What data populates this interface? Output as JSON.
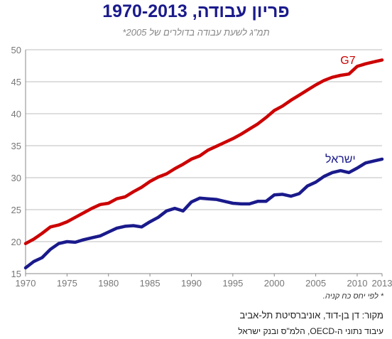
{
  "chart_data": {
    "type": "line",
    "title": "פריון עבודה, 1970-2013",
    "subtitle": "תמ\"ג לשעת עבודה בדולרים של 2005*",
    "x": [
      1970,
      1971,
      1972,
      1973,
      1974,
      1975,
      1976,
      1977,
      1978,
      1979,
      1980,
      1981,
      1982,
      1983,
      1984,
      1985,
      1986,
      1987,
      1988,
      1989,
      1990,
      1991,
      1992,
      1993,
      1994,
      1995,
      1996,
      1997,
      1998,
      1999,
      2000,
      2001,
      2002,
      2003,
      2004,
      2005,
      2006,
      2007,
      2008,
      2009,
      2010,
      2011,
      2012,
      2013
    ],
    "series": [
      {
        "name": "G7",
        "color": "#cc0000",
        "values": [
          19.7,
          20.4,
          21.3,
          22.3,
          22.6,
          23.1,
          23.8,
          24.5,
          25.2,
          25.8,
          26.0,
          26.7,
          27.0,
          27.8,
          28.5,
          29.4,
          30.1,
          30.6,
          31.4,
          32.1,
          32.9,
          33.4,
          34.3,
          34.9,
          35.5,
          36.1,
          36.8,
          37.6,
          38.4,
          39.4,
          40.5,
          41.2,
          42.1,
          42.9,
          43.7,
          44.5,
          45.2,
          45.7,
          46.0,
          46.2,
          47.4,
          47.8,
          48.1,
          48.4
        ]
      },
      {
        "name": "ישראל",
        "color": "#1a1a8c",
        "values": [
          15.9,
          16.9,
          17.5,
          18.8,
          19.7,
          20.0,
          19.9,
          20.3,
          20.6,
          20.9,
          21.5,
          22.1,
          22.4,
          22.5,
          22.3,
          23.1,
          23.8,
          24.8,
          25.2,
          24.8,
          26.2,
          26.8,
          26.7,
          26.6,
          26.3,
          26.0,
          25.9,
          25.9,
          26.3,
          26.3,
          27.3,
          27.4,
          27.1,
          27.5,
          28.7,
          29.3,
          30.2,
          30.8,
          31.1,
          30.8,
          31.5,
          32.3,
          32.6,
          32.9
        ]
      }
    ],
    "xlim": [
      1970,
      2013
    ],
    "ylim": [
      15,
      50
    ],
    "xticks": [
      1970,
      1975,
      1980,
      1985,
      1990,
      1995,
      2000,
      2005,
      2010,
      2013
    ],
    "yticks": [
      15,
      20,
      25,
      30,
      35,
      40,
      45,
      50
    ],
    "grid": true,
    "footnote": "* לפי יחס כח קניה.",
    "source_line1": "מקור:  דן בן-דוד, אוניברסיטת תל-אביב",
    "source_line2": "עיבוד נתוני ה-OECD, הלמ\"ס ובנק ישראל"
  }
}
